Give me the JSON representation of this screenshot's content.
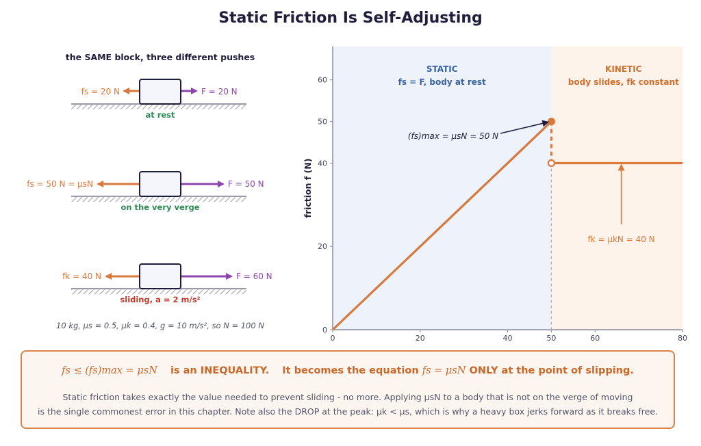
{
  "title": "Static Friction Is Self-Adjusting",
  "left_panel": {
    "heading": "the SAME block, three different pushes",
    "scenes": [
      {
        "friction_label": "fs = 20 N",
        "force_label": "F = 20 N",
        "caption": "at rest"
      },
      {
        "friction_label": "fs = 50 N = μsN",
        "force_label": "F = 50 N",
        "caption": "on the very verge"
      },
      {
        "friction_label": "fk = 40 N",
        "force_label": "F = 60 N",
        "caption": "sliding, a = 2 m/s²"
      }
    ],
    "footnote": "10 kg, μs = 0.5, μk = 0.4, g = 10 m/s², so N = 100 N"
  },
  "chart_data": {
    "type": "line",
    "ylabel": "friction f (N)",
    "xlim": [
      0,
      80
    ],
    "ylim": [
      0,
      68
    ],
    "x_ticks": [
      0,
      20,
      40,
      50,
      60,
      80
    ],
    "y_ticks": [
      0,
      20,
      40,
      50,
      60
    ],
    "regions": [
      {
        "name": "STATIC",
        "subtitle": "fs = F, body at rest",
        "x_range": [
          0,
          50
        ],
        "color": "#eef3fb"
      },
      {
        "name": "KINETIC",
        "subtitle": "body slides, fk constant",
        "x_range": [
          50,
          80
        ],
        "color": "#fdf3ea"
      }
    ],
    "series": [
      {
        "points": [
          [
            0,
            0
          ],
          [
            50,
            50
          ]
        ],
        "color": "#d9783c"
      },
      {
        "points": [
          [
            50,
            40
          ],
          [
            80,
            40
          ]
        ],
        "color": "#d9783c"
      }
    ],
    "annotations": [
      {
        "text": "(fs)max = μsN = 50 N",
        "at": [
          50,
          50
        ]
      },
      {
        "text": "fk = μkN = 40 N",
        "at": [
          66,
          40
        ]
      }
    ]
  },
  "callout": {
    "head_math1": "fs ≤ (fs)max = μsN",
    "head_text1": "is an INEQUALITY.",
    "head_text2": "It becomes the equation",
    "head_math2": "fs = μsN",
    "head_text3": "ONLY at the point of slipping.",
    "body_line1": "Static friction takes exactly the value needed to prevent sliding - no more. Applying μsN to a body that is not on the verge of moving",
    "body_line2": "is the single commonest error in this chapter. Note also the DROP at the peak: μk < μs, which is why a heavy box jerks forward as it breaks free."
  },
  "colors": {
    "friction": "#d9783c",
    "applied": "#8e44ad",
    "good": "#2e8b57",
    "sliding": "#c0392b",
    "dark": "#1e1e3c",
    "static_text": "#3a64a0",
    "kinetic_text": "#d0702e"
  }
}
